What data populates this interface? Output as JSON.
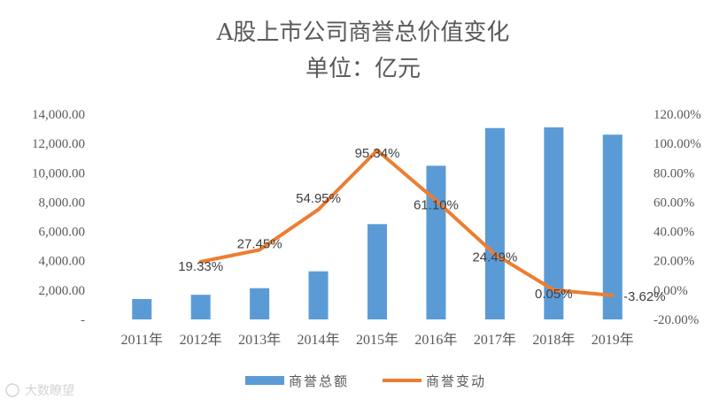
{
  "chart_data": {
    "type": "bar",
    "title_line1": "A股上市公司商誉总价值变化",
    "title_line2": "单位：亿元",
    "categories": [
      "2011年",
      "2012年",
      "2013年",
      "2014年",
      "2015年",
      "2016年",
      "2017年",
      "2018年",
      "2019年"
    ],
    "series": [
      {
        "name": "商誉总额",
        "kind": "bar",
        "axis": "left",
        "color": "#5B9BD5",
        "values": [
          1390,
          1680,
          2130,
          3280,
          6500,
          10480,
          13050,
          13100,
          12600
        ]
      },
      {
        "name": "商誉变动",
        "kind": "line",
        "axis": "right",
        "color": "#ED7D31",
        "values": [
          null,
          19.33,
          27.45,
          54.95,
          95.34,
          61.1,
          24.49,
          0.05,
          -3.62
        ],
        "labels": [
          "",
          "19.33%",
          "27.45%",
          "54.95%",
          "95.34%",
          "61.10%",
          "24.49%",
          "0.05%",
          "-3.62%"
        ]
      }
    ],
    "y_left": {
      "ylim": [
        0,
        14000
      ],
      "ticks": [
        0,
        2000,
        4000,
        6000,
        8000,
        10000,
        12000,
        14000
      ],
      "tick_labels": [
        "-",
        "2,000.00",
        "4,000.00",
        "6,000.00",
        "8,000.00",
        "10,000.00",
        "12,000.00",
        "14,000.00"
      ]
    },
    "y_right": {
      "ylim": [
        -20,
        120
      ],
      "ticks": [
        -20,
        0,
        20,
        40,
        60,
        80,
        100,
        120
      ],
      "tick_labels": [
        "-20.00%",
        "0.00%",
        "20.00%",
        "40.00%",
        "60.00%",
        "80.00%",
        "100.00%",
        "120.00%"
      ]
    },
    "legend": [
      "商誉总额",
      "商誉变动"
    ],
    "legend_position": "bottom",
    "grid": false
  },
  "watermark": "大数瞭望"
}
